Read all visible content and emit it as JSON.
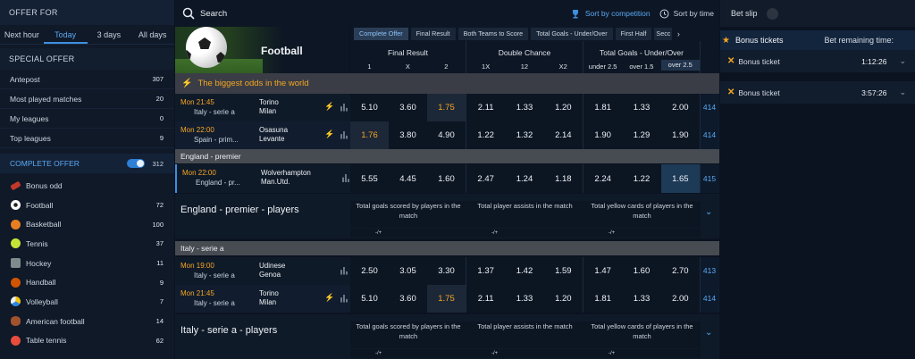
{
  "left": {
    "offer_for": "OFFER FOR",
    "tabs": [
      "Next hour",
      "Today",
      "3 days",
      "All days"
    ],
    "special_offer": "SPECIAL OFFER",
    "special_items": [
      {
        "label": "Antepost",
        "count": "307"
      },
      {
        "label": "Most played matches",
        "count": "20"
      },
      {
        "label": "My leagues",
        "count": "0"
      },
      {
        "label": "Top leagues",
        "count": "9"
      }
    ],
    "complete_offer": "COMPLETE OFFER",
    "complete_count": "312",
    "sports": [
      {
        "label": "Bonus odd",
        "count": "",
        "color": "#c0392b"
      },
      {
        "label": "Football",
        "count": "72",
        "color": "#ffffff"
      },
      {
        "label": "Basketball",
        "count": "100",
        "color": "#e67e22"
      },
      {
        "label": "Tennis",
        "count": "37",
        "color": "#c4e538"
      },
      {
        "label": "Hockey",
        "count": "11",
        "color": "#7f8c8d"
      },
      {
        "label": "Handball",
        "count": "9",
        "color": "#e67e22"
      },
      {
        "label": "Volleyball",
        "count": "7",
        "color": "#f1c40f"
      },
      {
        "label": "American football",
        "count": "14",
        "color": "#a0522d"
      },
      {
        "label": "Table tennis",
        "count": "62",
        "color": "#e74c3c"
      }
    ]
  },
  "header": {
    "search": "Search",
    "sort_competition": "Sort by competition",
    "sort_time": "Sort by time"
  },
  "hero": {
    "title": "Football"
  },
  "market_tabs": [
    "Complete Offer",
    "Final Result",
    "Both Teams to Score",
    "Total Goals - Under/Over",
    "First Half",
    "Secc"
  ],
  "groups": [
    {
      "title": "Final Result",
      "subs": [
        "1",
        "X",
        "2"
      ]
    },
    {
      "title": "Double Chance",
      "subs": [
        "1X",
        "12",
        "X2"
      ]
    },
    {
      "title": "Total Goals - Under/Over",
      "subs": [
        "under 2.5",
        "over 1.5",
        "over 2.5"
      ]
    }
  ],
  "biggest": "The biggest odds in the world",
  "matches_top": [
    {
      "time": "Mon 21:45",
      "league": "Italy - serie a",
      "home": "Torino",
      "away": "Milan",
      "odds": [
        "5.10",
        "3.60",
        "1.75",
        "2.11",
        "1.33",
        "1.20",
        "1.81",
        "1.33",
        "2.00"
      ],
      "more": "414"
    },
    {
      "time": "Mon 22:00",
      "league": "Spain - prim...",
      "home": "Osasuna",
      "away": "Levante",
      "odds": [
        "1.76",
        "3.80",
        "4.90",
        "1.22",
        "1.32",
        "2.14",
        "1.90",
        "1.29",
        "1.90"
      ],
      "more": "414"
    }
  ],
  "england": {
    "section": "England - premier",
    "match": {
      "time": "Mon 22:00",
      "league": "England - pr...",
      "home": "Wolverhampton",
      "away": "Man.Utd.",
      "odds": [
        "5.55",
        "4.45",
        "1.60",
        "2.47",
        "1.24",
        "1.18",
        "2.24",
        "1.22",
        "1.65"
      ],
      "more": "415"
    },
    "players_title": "England - premier - players",
    "players_cells": [
      "Total goals scored by players in the match",
      "Total player assists in the match",
      "Total yellow cards of players in the match"
    ],
    "bar": "-/+"
  },
  "italy": {
    "section": "Italy - serie a",
    "matches": [
      {
        "time": "Mon 19:00",
        "league": "Italy - serie a",
        "home": "Udinese",
        "away": "Genoa",
        "odds": [
          "2.50",
          "3.05",
          "3.30",
          "1.37",
          "1.42",
          "1.59",
          "1.47",
          "1.60",
          "2.70"
        ],
        "more": "413"
      },
      {
        "time": "Mon 21:45",
        "league": "Italy - serie a",
        "home": "Torino",
        "away": "Milan",
        "odds": [
          "5.10",
          "3.60",
          "1.75",
          "2.11",
          "1.33",
          "1.20",
          "1.81",
          "1.33",
          "2.00"
        ],
        "more": "414"
      }
    ],
    "players_title": "Italy - serie a - players",
    "players_cells": [
      "Total goals scored by players in the match",
      "Total player assists in the match",
      "Total yellow cards of players in the match"
    ],
    "bar": "-/+"
  },
  "right": {
    "bet_slip": "Bet slip",
    "bonus_tickets": "Bonus tickets",
    "bet_remaining": "Bet remaining time:",
    "tickets": [
      {
        "label": "Bonus ticket",
        "time": "1:12:26"
      },
      {
        "label": "Bonus ticket",
        "time": "3:57:26"
      }
    ]
  },
  "colors": {
    "accent": "#5aa9f2",
    "highlight": "#f5a623"
  }
}
